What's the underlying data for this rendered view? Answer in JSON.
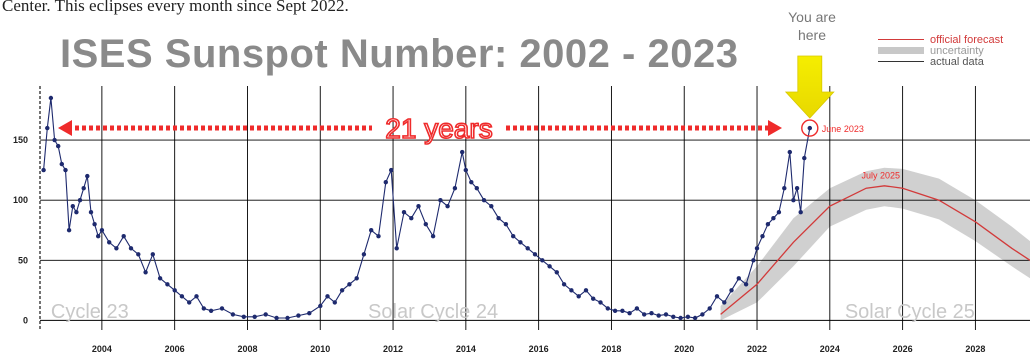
{
  "caption": "Center. This eclipses every month since Sept 2022.",
  "annotations": {
    "you_are_here": "You are\nhere",
    "span_label": "21 years",
    "current_label": "June 2023",
    "peak_label": "July 2025",
    "cycle_23": "Cycle 23",
    "cycle_24": "Solar Cycle 24",
    "cycle_25": "Solar Cycle 25"
  },
  "legend": [
    {
      "label": "official forecast",
      "color": "#d23a3a",
      "kind": "line"
    },
    {
      "label": "uncertainty",
      "color": "#c8c8c8",
      "kind": "band"
    },
    {
      "label": "actual data",
      "color": "#333333",
      "kind": "line"
    }
  ],
  "colors": {
    "arrow": "#f5ee00",
    "annotation": "#ef2b2b",
    "data_line": "#1e2a6e",
    "smoothed_line": "#8a8ae0",
    "forecast": "#d23a3a",
    "band": "#c8c8c8",
    "grid": "#000000",
    "cycle_text": "#c8c8c8"
  },
  "chart_data": {
    "type": "line",
    "title": "ISES Sunspot Number: 2002 - 2023",
    "xlabel": "",
    "ylabel": "",
    "xlim": [
      2002.3,
      2029.5
    ],
    "ylim": [
      -8,
      195
    ],
    "x_ticks": [
      2004,
      2006,
      2008,
      2010,
      2012,
      2014,
      2016,
      2018,
      2020,
      2022,
      2024,
      2026,
      2028
    ],
    "y_ticks": [
      0,
      50,
      100,
      150
    ],
    "grid": true,
    "legend_position": "top-right",
    "series": [
      {
        "name": "actual data",
        "x": [
          2002.4,
          2002.5,
          2002.6,
          2002.7,
          2002.8,
          2002.9,
          2003.0,
          2003.1,
          2003.2,
          2003.3,
          2003.4,
          2003.5,
          2003.6,
          2003.7,
          2003.8,
          2003.9,
          2004.0,
          2004.2,
          2004.4,
          2004.6,
          2004.8,
          2005.0,
          2005.2,
          2005.4,
          2005.6,
          2005.8,
          2006.0,
          2006.2,
          2006.4,
          2006.6,
          2006.8,
          2007.0,
          2007.3,
          2007.6,
          2007.9,
          2008.2,
          2008.5,
          2008.8,
          2009.1,
          2009.4,
          2009.7,
          2010.0,
          2010.2,
          2010.4,
          2010.6,
          2010.8,
          2011.0,
          2011.2,
          2011.4,
          2011.6,
          2011.8,
          2011.95,
          2012.1,
          2012.3,
          2012.5,
          2012.7,
          2012.9,
          2013.1,
          2013.3,
          2013.5,
          2013.7,
          2013.9,
          2014.0,
          2014.15,
          2014.3,
          2014.5,
          2014.7,
          2014.9,
          2015.1,
          2015.3,
          2015.5,
          2015.7,
          2015.9,
          2016.1,
          2016.3,
          2016.5,
          2016.7,
          2016.9,
          2017.1,
          2017.3,
          2017.5,
          2017.7,
          2017.9,
          2018.1,
          2018.3,
          2018.5,
          2018.7,
          2018.9,
          2019.1,
          2019.3,
          2019.5,
          2019.7,
          2019.9,
          2020.1,
          2020.3,
          2020.5,
          2020.7,
          2020.9,
          2021.1,
          2021.3,
          2021.5,
          2021.7,
          2021.9,
          2022.0,
          2022.15,
          2022.3,
          2022.45,
          2022.6,
          2022.75,
          2022.9,
          2023.0,
          2023.1,
          2023.2,
          2023.3,
          2023.45
        ],
        "values": [
          125,
          160,
          185,
          150,
          145,
          130,
          125,
          75,
          95,
          90,
          100,
          110,
          120,
          90,
          80,
          70,
          75,
          65,
          60,
          70,
          60,
          55,
          40,
          55,
          35,
          30,
          25,
          20,
          15,
          20,
          10,
          8,
          10,
          5,
          3,
          3,
          5,
          2,
          2,
          4,
          6,
          12,
          20,
          15,
          25,
          30,
          35,
          55,
          75,
          70,
          115,
          125,
          60,
          90,
          85,
          95,
          80,
          70,
          100,
          95,
          110,
          140,
          125,
          115,
          110,
          100,
          95,
          85,
          80,
          70,
          65,
          60,
          55,
          50,
          45,
          40,
          30,
          25,
          20,
          25,
          18,
          15,
          10,
          8,
          8,
          6,
          10,
          5,
          6,
          4,
          5,
          3,
          2,
          3,
          2,
          5,
          10,
          20,
          15,
          25,
          35,
          30,
          50,
          60,
          70,
          80,
          85,
          90,
          110,
          140,
          100,
          110,
          90,
          135,
          160
        ]
      },
      {
        "name": "official forecast",
        "x": [
          2021.0,
          2022.0,
          2023.0,
          2024.0,
          2025.0,
          2025.5,
          2026.0,
          2027.0,
          2028.0,
          2029.0,
          2029.5
        ],
        "values": [
          5,
          30,
          65,
          95,
          110,
          112,
          110,
          100,
          82,
          60,
          50
        ]
      },
      {
        "name": "uncertainty",
        "x": [
          2021.0,
          2022.0,
          2023.0,
          2024.0,
          2025.0,
          2025.5,
          2026.0,
          2027.0,
          2028.0,
          2029.0,
          2029.5
        ],
        "lower": [
          0,
          15,
          45,
          78,
          92,
          95,
          93,
          84,
          66,
          45,
          35
        ],
        "upper": [
          12,
          45,
          85,
          110,
          124,
          127,
          126,
          118,
          100,
          78,
          66
        ]
      }
    ]
  }
}
